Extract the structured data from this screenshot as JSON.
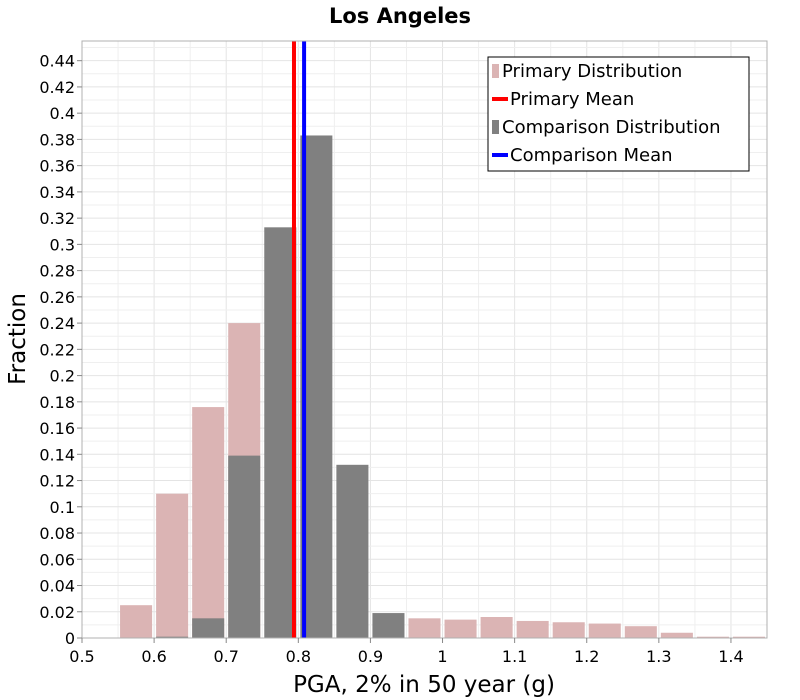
{
  "chart_data": {
    "type": "bar",
    "title": "Los Angeles",
    "xlabel": "PGA, 2% in 50 year (g)",
    "ylabel": "Fraction",
    "xlim": [
      0.5,
      1.45
    ],
    "ylim": [
      0,
      0.455
    ],
    "x_ticks": [
      "0.5",
      "0.6",
      "0.7",
      "0.8",
      "0.9",
      "1",
      "1.1",
      "1.2",
      "1.3",
      "1.4"
    ],
    "y_ticks": [
      "0",
      "0.02",
      "0.04",
      "0.06",
      "0.08",
      "0.1",
      "0.12",
      "0.14",
      "0.16",
      "0.18",
      "0.2",
      "0.22",
      "0.24",
      "0.26",
      "0.28",
      "0.3",
      "0.32",
      "0.34",
      "0.36",
      "0.38",
      "0.4",
      "0.42",
      "0.44"
    ],
    "grid": true,
    "legend_position": "top-right",
    "bin_width": 0.05,
    "series": [
      {
        "name": "Primary Distribution",
        "kind": "histogram",
        "color": "#dbb4b4",
        "bin_centers": [
          0.575,
          0.625,
          0.675,
          0.725,
          0.775,
          0.825,
          0.875,
          0.925,
          0.975,
          1.025,
          1.075,
          1.125,
          1.175,
          1.225,
          1.275,
          1.325,
          1.375,
          1.425
        ],
        "values": [
          0.025,
          0.11,
          0.176,
          0.24,
          0.0,
          0.0,
          0.0,
          0.0,
          0.015,
          0.014,
          0.016,
          0.013,
          0.012,
          0.011,
          0.009,
          0.004,
          0.001,
          0.001
        ]
      },
      {
        "name": "Comparison Distribution",
        "kind": "histogram",
        "color": "#808080",
        "bin_centers": [
          0.625,
          0.675,
          0.725,
          0.775,
          0.825,
          0.875,
          0.925
        ],
        "values": [
          0.001,
          0.015,
          0.139,
          0.313,
          0.383,
          0.132,
          0.019
        ]
      },
      {
        "name": "Primary Mean",
        "kind": "vline",
        "color": "#ff0000",
        "x": 0.794
      },
      {
        "name": "Comparison Mean",
        "kind": "vline",
        "color": "#0000ff",
        "x": 0.808
      }
    ]
  }
}
